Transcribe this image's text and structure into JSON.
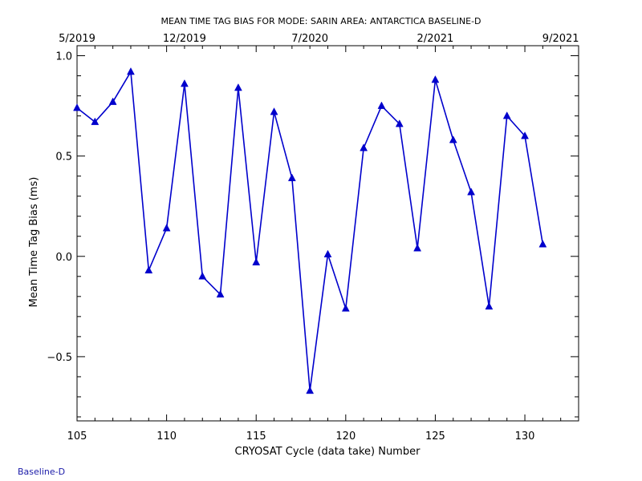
{
  "footer_label": "Baseline-D",
  "chart_data": {
    "type": "line",
    "title": "MEAN TIME TAG BIAS FOR MODE: SARIN AREA: ANTARCTICA BASELINE-D",
    "xlabel": "CRYOSAT Cycle (data take) Number",
    "ylabel": "Mean Time Tag Bias (ms)",
    "xlim": [
      105,
      133
    ],
    "ylim": [
      -0.82,
      1.05
    ],
    "x_ticks": [
      105,
      110,
      115,
      120,
      125,
      130
    ],
    "y_ticks": [
      -0.5,
      0.0,
      0.5,
      1.0
    ],
    "y_tick_labels": [
      "−0.5",
      "0.0",
      "0.5",
      "1.0"
    ],
    "top_axis_ticks": [
      {
        "x": 105,
        "label": "5/2019"
      },
      {
        "x": 111,
        "label": "12/2019"
      },
      {
        "x": 118,
        "label": "7/2020"
      },
      {
        "x": 125,
        "label": "2/2021"
      },
      {
        "x": 132,
        "label": "9/2021"
      }
    ],
    "series_color": "#0000cc",
    "marker": "triangle",
    "series": [
      {
        "x": [
          105,
          106,
          107,
          108,
          109,
          110,
          111,
          112,
          113,
          114,
          115,
          116,
          117,
          118,
          119,
          120,
          121,
          122,
          123,
          124,
          125,
          126,
          127,
          128,
          129,
          130,
          131
        ],
        "values": [
          0.74,
          0.67,
          0.77,
          0.92,
          -0.07,
          0.14,
          0.86,
          -0.1,
          -0.19,
          0.84,
          -0.03,
          0.72,
          0.39,
          -0.67,
          0.01,
          -0.26,
          0.54,
          0.75,
          0.66,
          0.04,
          0.88,
          0.58,
          0.32,
          -0.25,
          0.7,
          0.6,
          0.06
        ]
      }
    ]
  }
}
